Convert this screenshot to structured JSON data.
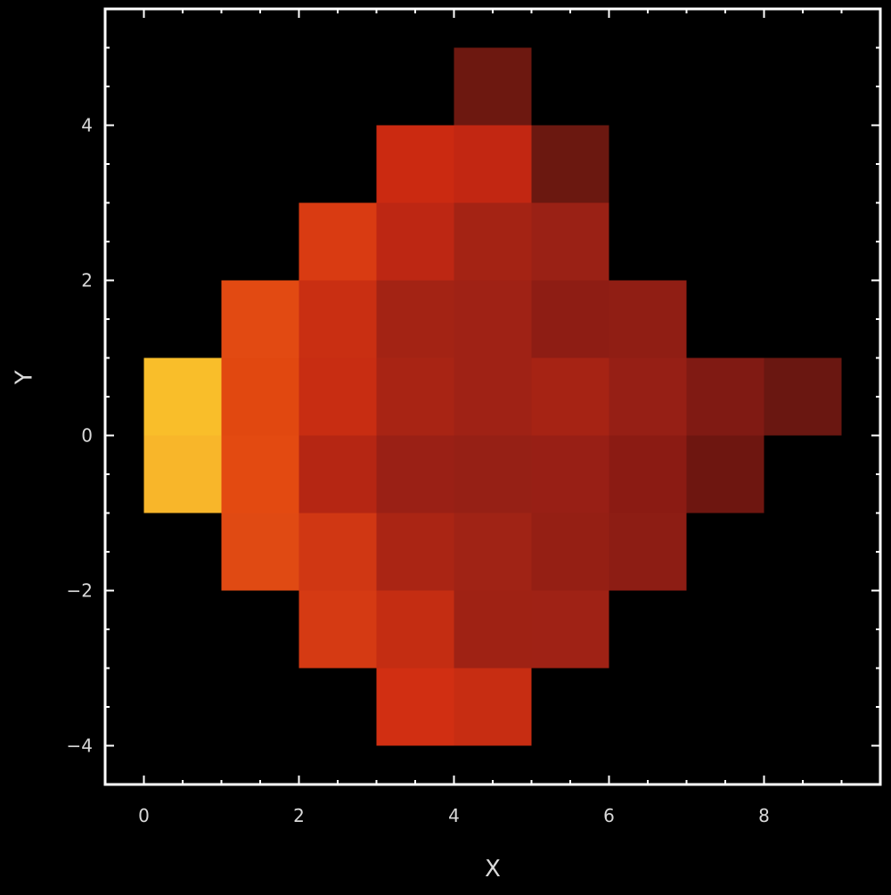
{
  "chart_data": {
    "type": "heatmap",
    "title": "",
    "xlabel": "X",
    "ylabel": "Y",
    "xlim": [
      -0.5,
      9.5
    ],
    "ylim": [
      -4.5,
      5.5
    ],
    "x_ticks": [
      0,
      2,
      4,
      6,
      8
    ],
    "y_ticks": [
      -4,
      -2,
      0,
      2,
      4
    ],
    "x_tick_labels": [
      "0",
      "2",
      "4",
      "6",
      "8"
    ],
    "y_tick_labels": [
      "−4",
      "−2",
      "0",
      "2",
      "4"
    ],
    "grid": false,
    "legend": "none",
    "background_color": "#000000",
    "frame_color": "#ffffff",
    "cells": [
      {
        "x0": 4,
        "y0": 4,
        "color": "#6d1810"
      },
      {
        "x0": 3,
        "y0": 3,
        "color": "#cb2a11"
      },
      {
        "x0": 4,
        "y0": 3,
        "color": "#c22712"
      },
      {
        "x0": 5,
        "y0": 3,
        "color": "#6b1810"
      },
      {
        "x0": 2,
        "y0": 2,
        "color": "#d93b12"
      },
      {
        "x0": 3,
        "y0": 2,
        "color": "#bd2713"
      },
      {
        "x0": 4,
        "y0": 2,
        "color": "#a42314"
      },
      {
        "x0": 5,
        "y0": 2,
        "color": "#9a2115"
      },
      {
        "x0": 1,
        "y0": 1,
        "color": "#e24a12"
      },
      {
        "x0": 2,
        "y0": 1,
        "color": "#c92f12"
      },
      {
        "x0": 3,
        "y0": 1,
        "color": "#a32314"
      },
      {
        "x0": 4,
        "y0": 1,
        "color": "#9f2215"
      },
      {
        "x0": 5,
        "y0": 1,
        "color": "#8e1d14"
      },
      {
        "x0": 6,
        "y0": 1,
        "color": "#901e14"
      },
      {
        "x0": 0,
        "y0": 0,
        "color": "#f9be2a"
      },
      {
        "x0": 1,
        "y0": 0,
        "color": "#e14810"
      },
      {
        "x0": 2,
        "y0": 0,
        "color": "#c82d12"
      },
      {
        "x0": 3,
        "y0": 0,
        "color": "#a82414"
      },
      {
        "x0": 4,
        "y0": 0,
        "color": "#9f2215"
      },
      {
        "x0": 5,
        "y0": 0,
        "color": "#a62314"
      },
      {
        "x0": 6,
        "y0": 0,
        "color": "#961f15"
      },
      {
        "x0": 7,
        "y0": 0,
        "color": "#801a13"
      },
      {
        "x0": 8,
        "y0": 0,
        "color": "#6a1711"
      },
      {
        "x0": 0,
        "y0": -1,
        "color": "#f8b62a"
      },
      {
        "x0": 1,
        "y0": -1,
        "color": "#e34a11"
      },
      {
        "x0": 2,
        "y0": -1,
        "color": "#b52613"
      },
      {
        "x0": 3,
        "y0": -1,
        "color": "#9a2015"
      },
      {
        "x0": 4,
        "y0": -1,
        "color": "#962015"
      },
      {
        "x0": 5,
        "y0": -1,
        "color": "#981f15"
      },
      {
        "x0": 6,
        "y0": -1,
        "color": "#8b1b13"
      },
      {
        "x0": 7,
        "y0": -1,
        "color": "#6e1610"
      },
      {
        "x0": 1,
        "y0": -2,
        "color": "#e04a13"
      },
      {
        "x0": 2,
        "y0": -2,
        "color": "#d03713"
      },
      {
        "x0": 3,
        "y0": -2,
        "color": "#aa2514"
      },
      {
        "x0": 4,
        "y0": -2,
        "color": "#a02315"
      },
      {
        "x0": 5,
        "y0": -2,
        "color": "#951f14"
      },
      {
        "x0": 6,
        "y0": -2,
        "color": "#8d1d14"
      },
      {
        "x0": 2,
        "y0": -3,
        "color": "#d53a13"
      },
      {
        "x0": 3,
        "y0": -3,
        "color": "#c42d12"
      },
      {
        "x0": 4,
        "y0": -3,
        "color": "#9f2214"
      },
      {
        "x0": 5,
        "y0": -3,
        "color": "#9f2215"
      },
      {
        "x0": 3,
        "y0": -4,
        "color": "#d12f12"
      },
      {
        "x0": 4,
        "y0": -4,
        "color": "#c72d12"
      }
    ]
  }
}
